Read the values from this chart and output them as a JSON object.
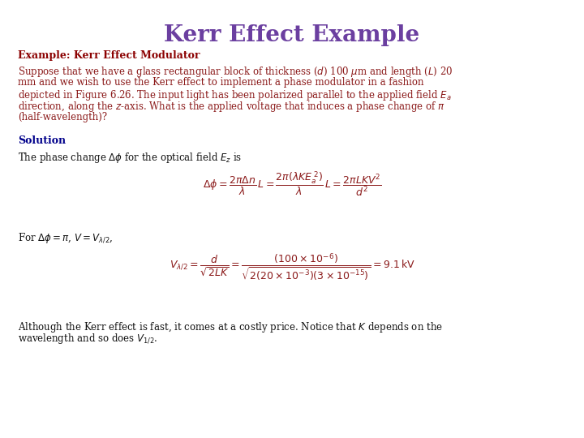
{
  "title": "Kerr Effect Example",
  "title_color": "#6B3FA0",
  "title_fontsize": 20,
  "background_color": "#FFFFFF",
  "example_header": "Example: Kerr Effect Modulator",
  "example_header_color": "#8B0000",
  "example_header_fontsize": 9,
  "body_text_color": "#8B1A1A",
  "body_fontsize": 8.5,
  "solution_color": "#00008B",
  "solution_fontsize": 9,
  "black_text_color": "#111111",
  "eq_color": "#8B1A1A",
  "eq_fontsize": 9,
  "paragraph1_line1": "Suppose that we have a glass rectangular block of thickness ($d$) 100 $\\mu$m and length ($L$) 20",
  "paragraph1_line2": "mm and we wish to use the Kerr effect to implement a phase modulator in a fashion",
  "paragraph1_line3": "depicted in Figure 6.26. The input light has been polarized parallel to the applied field $E_a$",
  "paragraph1_line4": "direction, along the $z$-axis. What is the applied voltage that induces a phase change of $\\pi$",
  "paragraph1_line5": "(half-wavelength)?",
  "solution_word": "Solution",
  "phase_text": "The phase change $\\Delta\\phi$ for the optical field $E_z$ is",
  "equation1": "$\\Delta\\phi = \\dfrac{2\\pi\\Delta n}{\\lambda}\\, L = \\dfrac{2\\pi(\\lambda K E_a^{\\,2})}{\\lambda}\\, L = \\dfrac{2\\pi L K V^2}{d^2}$",
  "for_text": "For $\\Delta\\phi= \\pi$, $V = V_{\\lambda/2}$,",
  "equation2": "$V_{\\lambda/2} = \\dfrac{d}{\\sqrt{2LK}} = \\dfrac{(100\\times10^{-6})}{\\sqrt{2(20\\times10^{-3})(3\\times10^{-15})}} = 9.1\\,\\mathrm{kV}$",
  "closing_line1": "Although the Kerr effect is fast, it comes at a costly price. Notice that $K$ depends on the",
  "closing_line2": "wavelength and so does $V_{1/2}$."
}
